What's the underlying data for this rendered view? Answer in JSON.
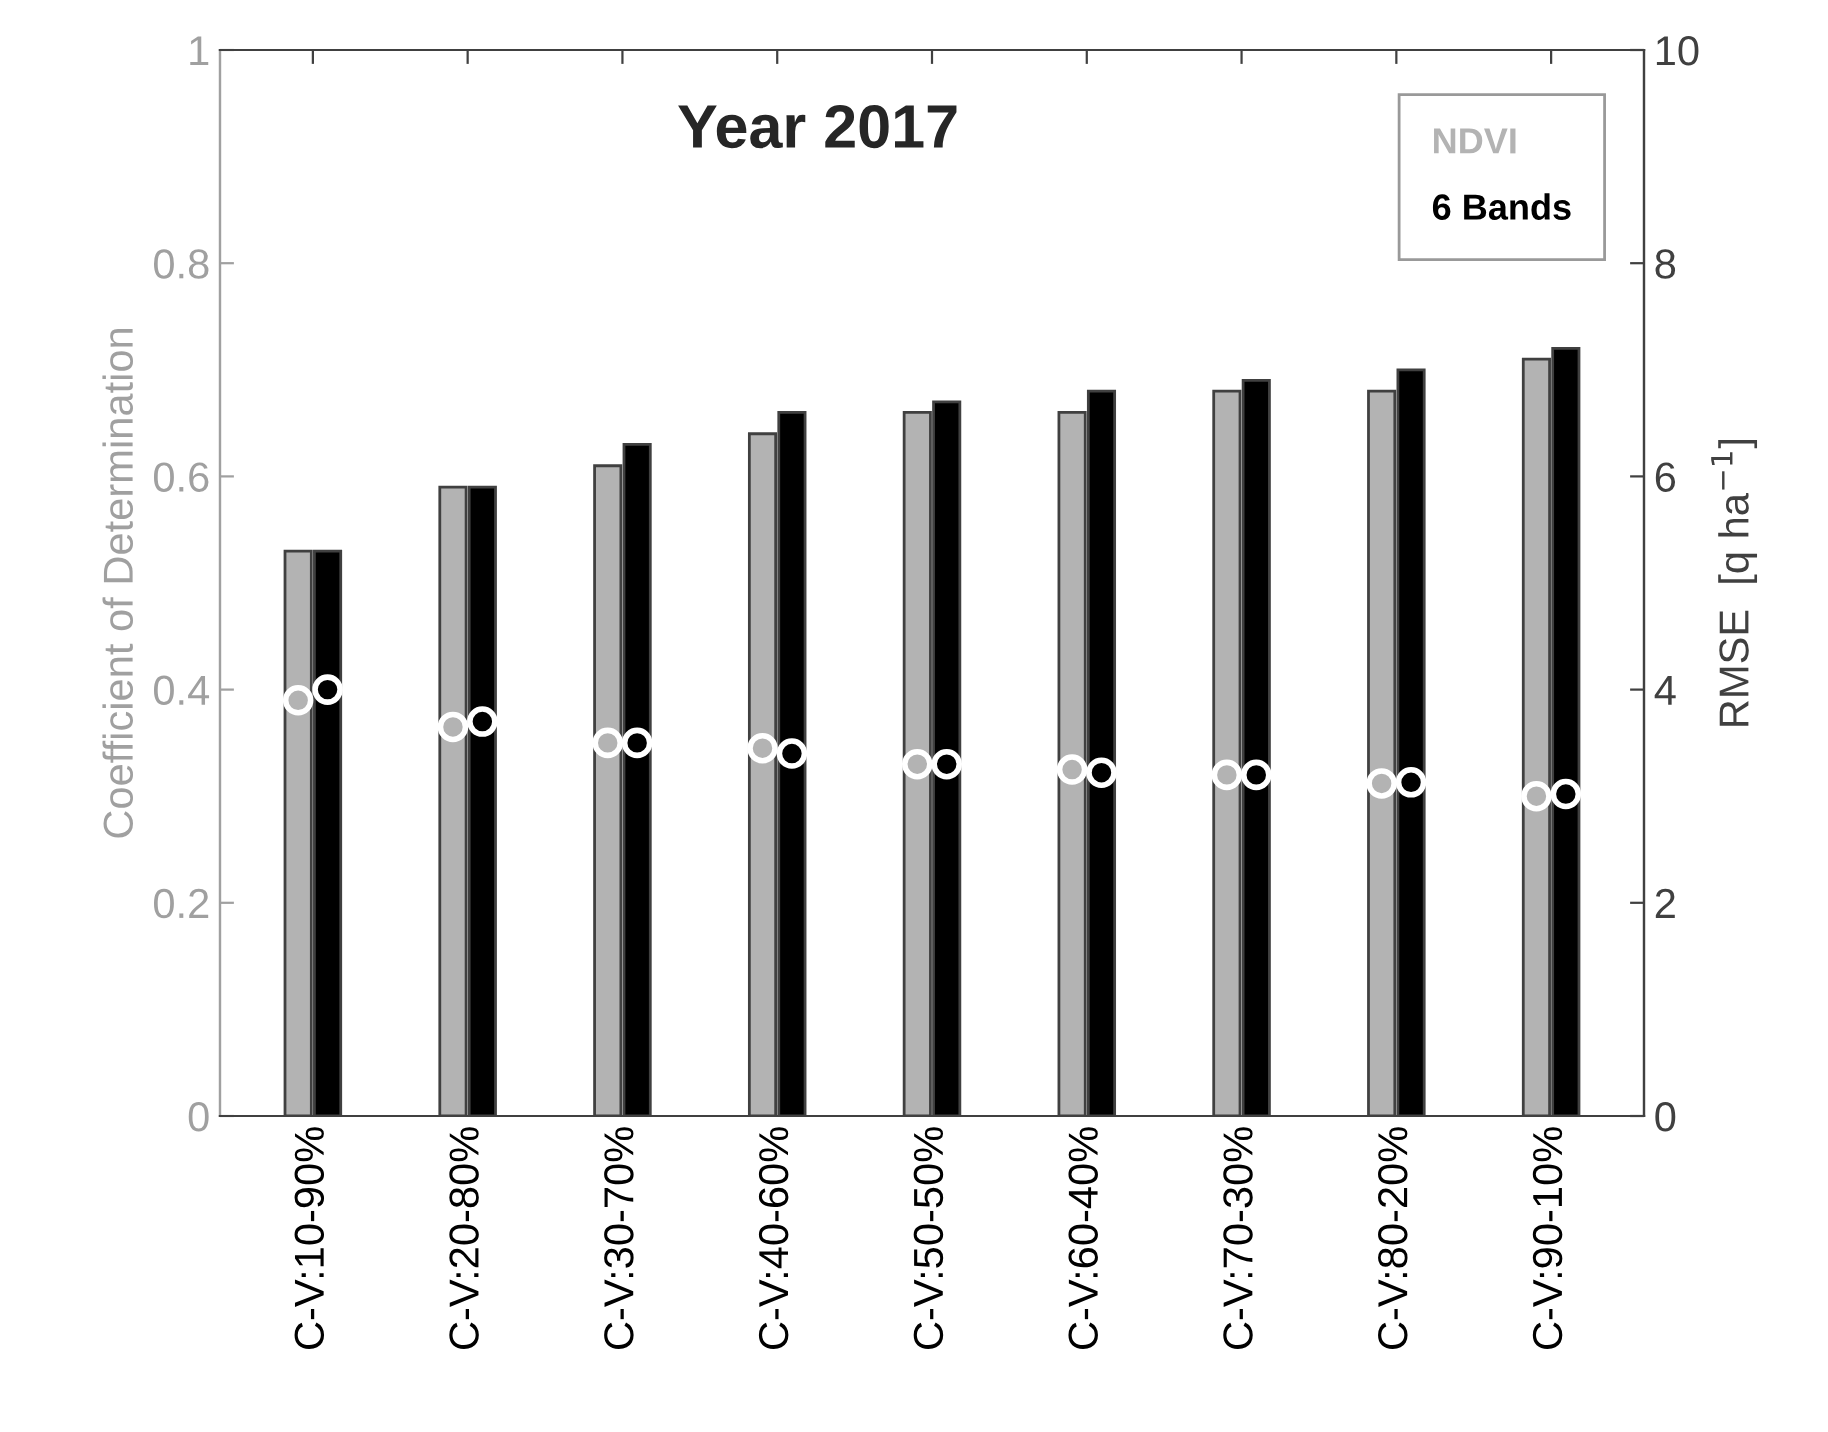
{
  "chart_data": {
    "type": "bar",
    "title": "Year 2017",
    "ylabel": "Coefficient of Determination",
    "y2label": "RMSE  [q ha$^{−1}$]",
    "categories": [
      "C-V:10-90%",
      "C-V:20-80%",
      "C-V:30-70%",
      "C-V:40-60%",
      "C-V:50-50%",
      "C-V:60-40%",
      "C-V:70-30%",
      "C-V:80-20%",
      "C-V:90-10%"
    ],
    "series": [
      {
        "name": "NDVI",
        "color": "#b3b3b3",
        "values": [
          0.53,
          0.59,
          0.61,
          0.64,
          0.66,
          0.66,
          0.68,
          0.68,
          0.71
        ]
      },
      {
        "name": "6 Bands",
        "color": "#000000",
        "values": [
          0.53,
          0.59,
          0.63,
          0.66,
          0.67,
          0.68,
          0.69,
          0.7,
          0.72
        ]
      },
      {
        "type": "scatter",
        "axis": "y2",
        "color": "#b3b3b3",
        "values": [
          3.9,
          3.65,
          3.5,
          3.45,
          3.3,
          3.25,
          3.2,
          3.12,
          3.0
        ]
      },
      {
        "type": "scatter",
        "axis": "y2",
        "color": "#000000",
        "values": [
          4.0,
          3.7,
          3.5,
          3.4,
          3.3,
          3.22,
          3.2,
          3.13,
          3.02
        ]
      }
    ],
    "ylim": [
      0,
      1
    ],
    "yticks": [
      0,
      0.2,
      0.4,
      0.6,
      0.8,
      1
    ],
    "y2lim": [
      0,
      10
    ],
    "y2ticks": [
      0,
      2,
      4,
      6,
      8,
      10
    ],
    "marker": "circle",
    "legend": "top right",
    "grid": false
  }
}
